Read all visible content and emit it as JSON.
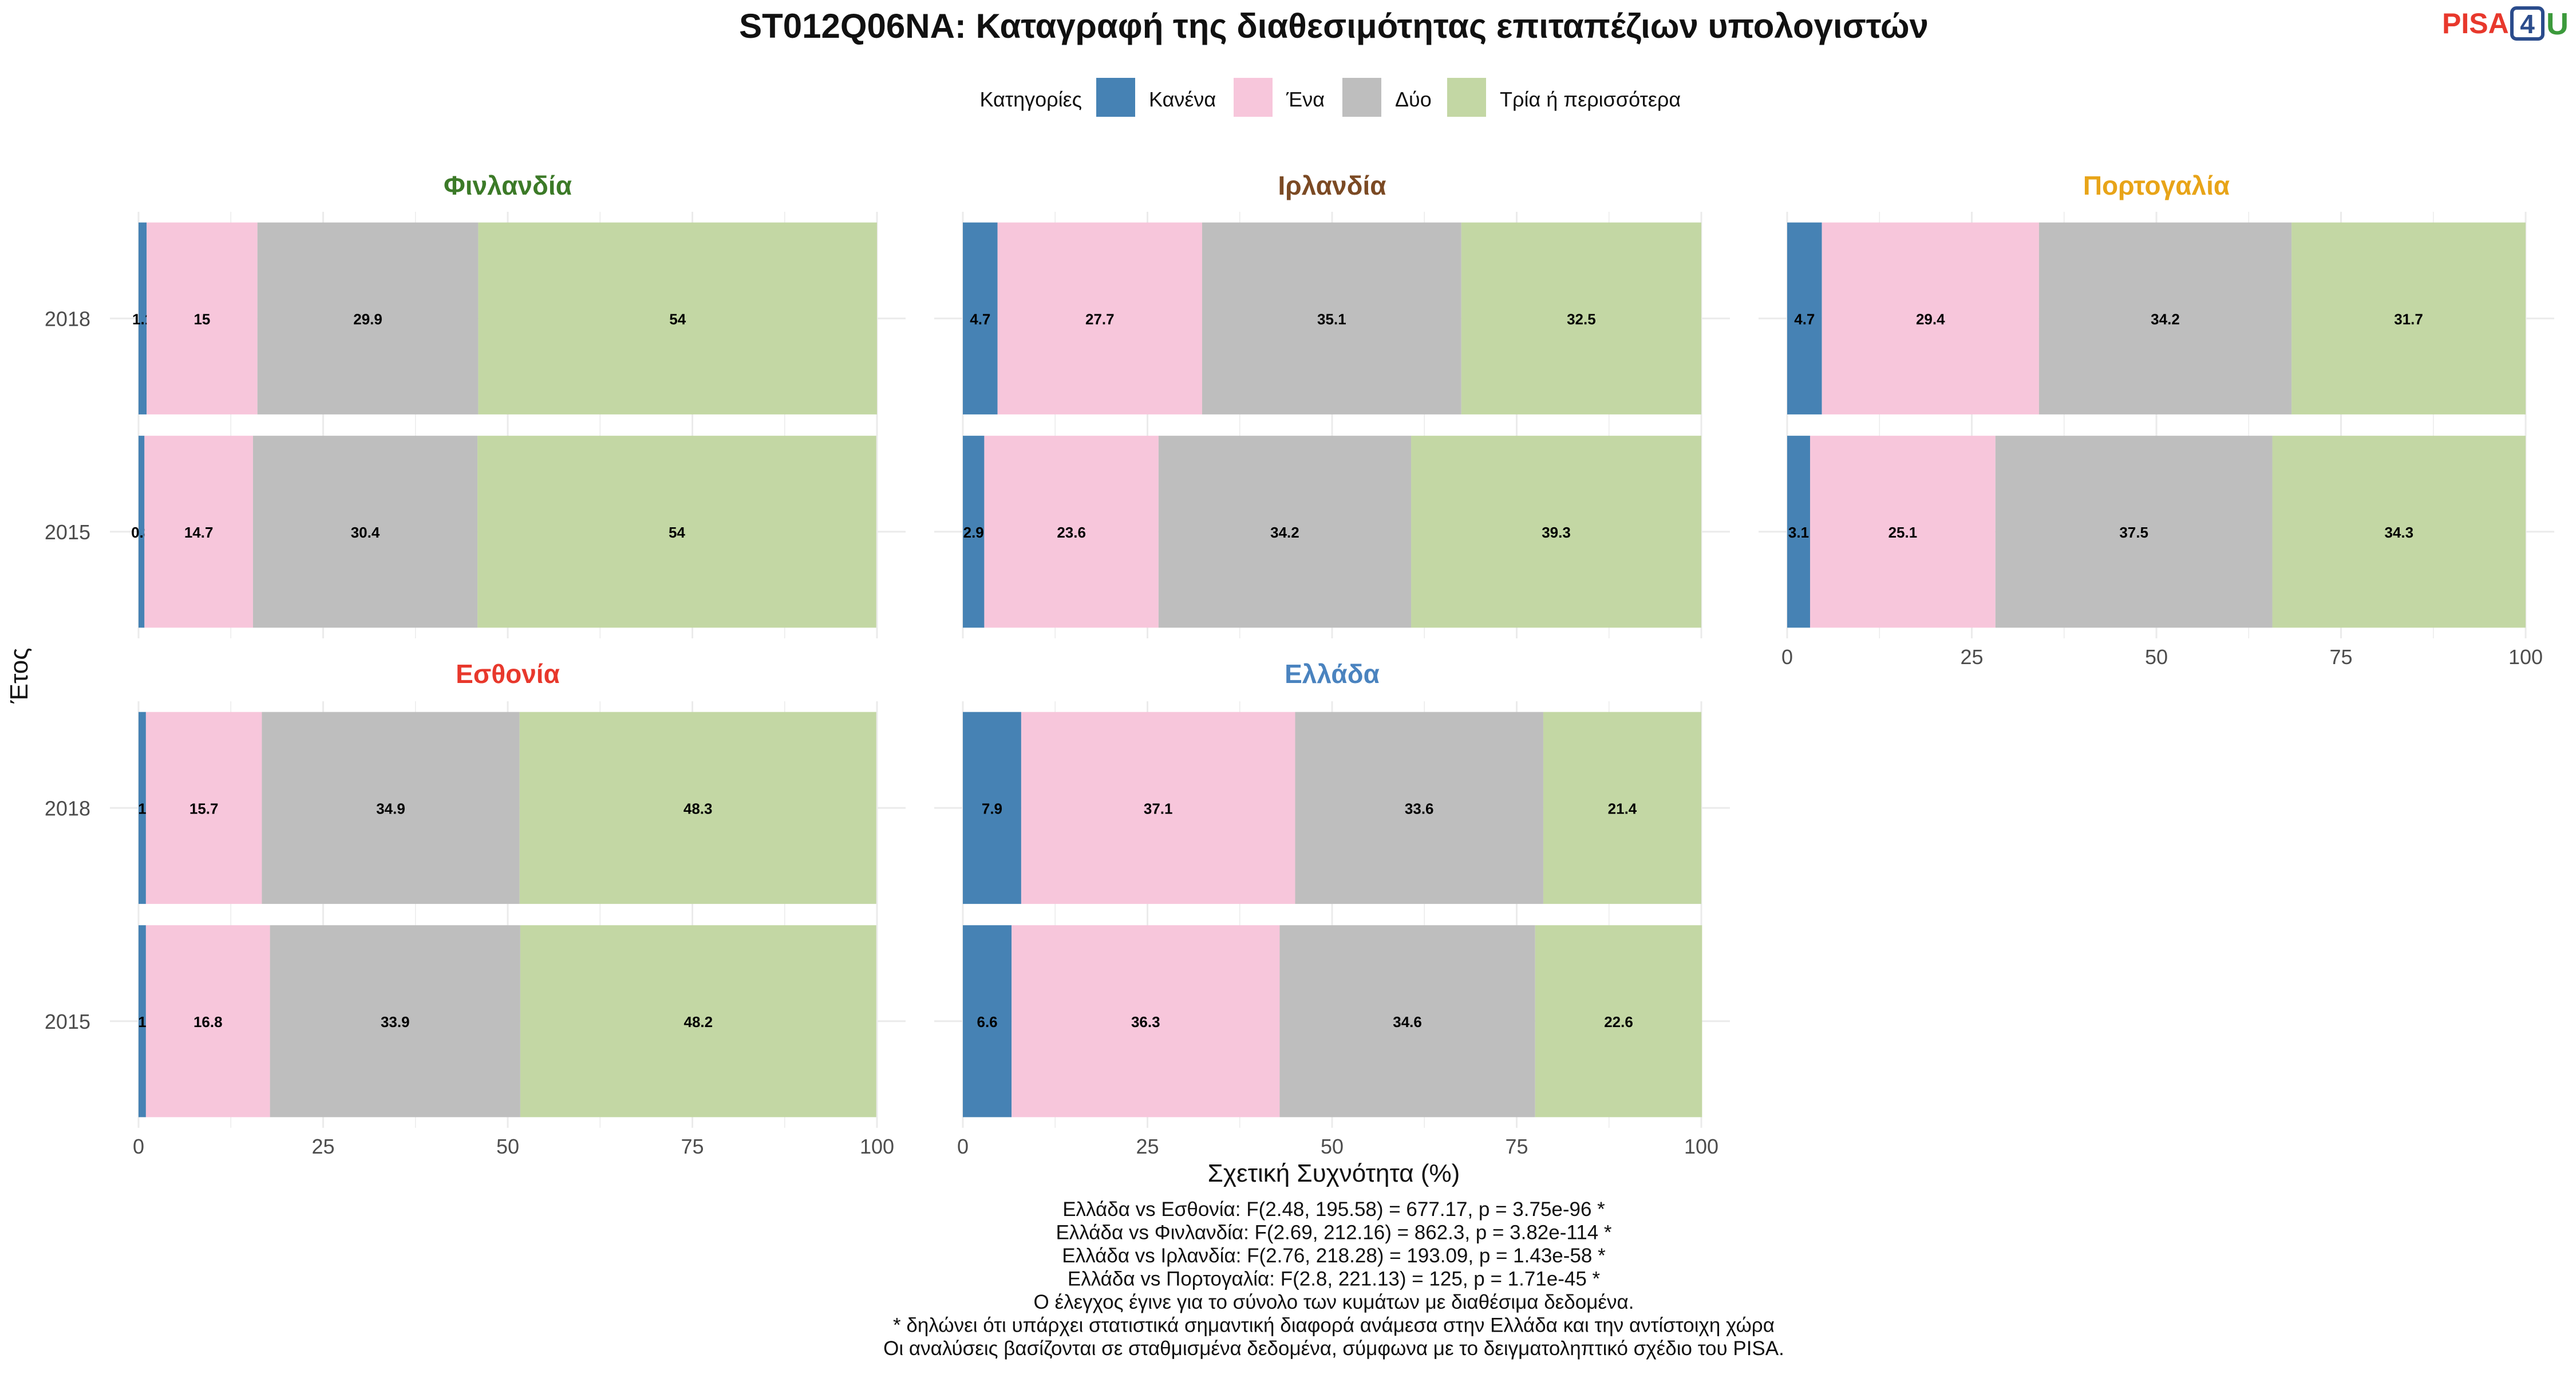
{
  "chart_data": {
    "type": "bar",
    "orientation": "horizontal",
    "stacked": true,
    "title": "ST012Q06NA: Καταγραφή της διαθεσιμότητας επιταπέζιων υπολογιστών",
    "xlabel": "Σχετική Συχνότητα (%)",
    "ylabel": "Έτος",
    "xlim": [
      0,
      100
    ],
    "xticks": [
      "0",
      "25",
      "50",
      "75",
      "100"
    ],
    "categories": [
      "2018",
      "2015"
    ],
    "grid": true,
    "legend": {
      "placement": "top",
      "title": "Κατηγορίες",
      "entries": [
        "Κανένα",
        "Ένα",
        "Δύο",
        "Τρία ή περισσότερα"
      ]
    },
    "series_colors": [
      "#4682B4",
      "#F7C6DB",
      "#BEBEBE",
      "#C3D7A4"
    ],
    "panels": [
      {
        "name": "Φινλανδία",
        "color": "#3C7A28",
        "years": [
          {
            "year": "2018",
            "values": [
              1.1,
              15,
              29.9,
              54
            ],
            "labels": [
              "1.1",
              "15",
              "29.9",
              "54"
            ]
          },
          {
            "year": "2015",
            "values": [
              0.8,
              14.7,
              30.4,
              54
            ],
            "labels": [
              "0.8",
              "14.7",
              "30.4",
              "54"
            ]
          }
        ]
      },
      {
        "name": "Ιρλανδία",
        "color": "#7B4A24",
        "years": [
          {
            "year": "2018",
            "values": [
              4.7,
              27.7,
              35.1,
              32.5
            ],
            "labels": [
              "4.7",
              "27.7",
              "35.1",
              "32.5"
            ]
          },
          {
            "year": "2015",
            "values": [
              2.9,
              23.6,
              34.2,
              39.3
            ],
            "labels": [
              "2.9",
              "23.6",
              "34.2",
              "39.3"
            ]
          }
        ]
      },
      {
        "name": "Πορτογαλία",
        "color": "#E8A418",
        "years": [
          {
            "year": "2018",
            "values": [
              4.7,
              29.4,
              34.2,
              31.7
            ],
            "labels": [
              "4.7",
              "29.4",
              "34.2",
              "31.7"
            ]
          },
          {
            "year": "2015",
            "values": [
              3.1,
              25.1,
              37.5,
              34.3
            ],
            "labels": [
              "3.1",
              "25.1",
              "37.5",
              "34.3"
            ]
          }
        ]
      },
      {
        "name": "Εσθονία",
        "color": "#E8382C",
        "years": [
          {
            "year": "2018",
            "values": [
              1,
              15.7,
              34.9,
              48.3
            ],
            "labels": [
              "1",
              "15.7",
              "34.9",
              "48.3"
            ]
          },
          {
            "year": "2015",
            "values": [
              1,
              16.8,
              33.9,
              48.2
            ],
            "labels": [
              "1",
              "16.8",
              "33.9",
              "48.2"
            ]
          }
        ]
      },
      {
        "name": "Ελλάδα",
        "color": "#4A83BF",
        "years": [
          {
            "year": "2018",
            "values": [
              7.9,
              37.1,
              33.6,
              21.4
            ],
            "labels": [
              "7.9",
              "37.1",
              "33.6",
              "21.4"
            ]
          },
          {
            "year": "2015",
            "values": [
              6.6,
              36.3,
              34.6,
              22.6
            ],
            "labels": [
              "6.6",
              "36.3",
              "34.6",
              "22.6"
            ]
          }
        ]
      }
    ],
    "footnotes": [
      "Ελλάδα vs Εσθονία: F(2.48, 195.58) = 677.17, p = 3.75e-96 *",
      "Ελλάδα vs Φινλανδία: F(2.69, 212.16) = 862.3, p = 3.82e-114 *",
      "Ελλάδα vs Ιρλανδία: F(2.76, 218.28) = 193.09, p = 1.43e-58 *",
      "Ελλάδα vs Πορτογαλία: F(2.8, 221.13) = 125, p = 1.71e-45 *",
      "Ο έλεγχος έγινε για το σύνολο των κυμάτων με διαθέσιμα δεδομένα.",
      "* δηλώνει ότι υπάρχει στατιστικά σημαντική διαφορά ανάμεσα στην Ελλάδα και την αντίστοιχη χώρα",
      "Οι αναλύσεις βασίζονται σε σταθμισμένα δεδομένα, σύμφωνα με το δειγματοληπτικό σχέδιο του PISA."
    ]
  },
  "logo": {
    "pisa_text": "PISA",
    "digit": "4",
    "u_text": "U",
    "pisa_color": "#E8382C",
    "digit_color": "#2B4C8C",
    "u_color": "#3C9A3C"
  }
}
